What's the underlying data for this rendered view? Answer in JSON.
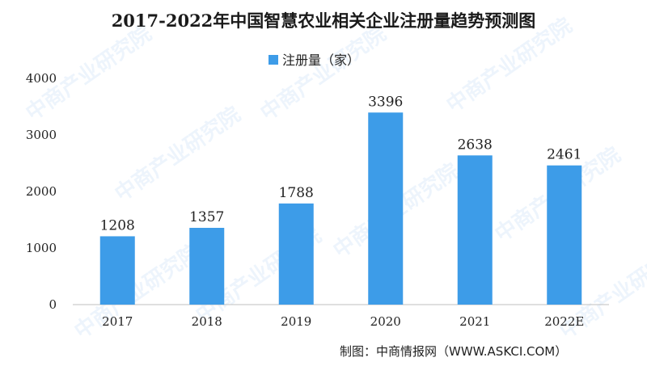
{
  "chart_data": {
    "type": "bar",
    "title": "2017-2022年中国智慧农业相关企业注册量趋势预测图",
    "categories": [
      "2017",
      "2018",
      "2019",
      "2020",
      "2021",
      "2022E"
    ],
    "series": [
      {
        "name": "注册量（家）",
        "values": [
          1208,
          1357,
          1788,
          3396,
          2638,
          2461
        ],
        "color": "#3d9ce8"
      }
    ],
    "ylim": [
      0,
      4000
    ],
    "yticks": [
      0,
      1000,
      2000,
      3000,
      4000
    ],
    "legend_position": "top-center",
    "grid": false,
    "data_labels": true
  },
  "source": "制图：中商情报网（WWW.ASKCI.COM）",
  "watermark": "中商产业研究院"
}
